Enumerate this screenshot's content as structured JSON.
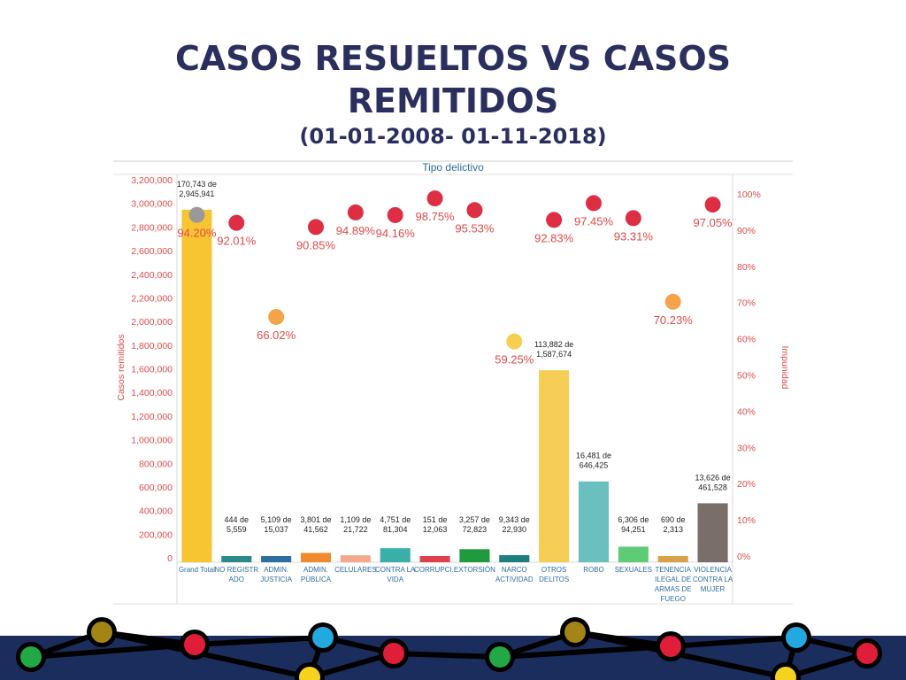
{
  "page": {
    "title_line1": "CASOS RESUELTOS VS CASOS",
    "title_line2": "REMITIDOS",
    "subtitle": "(01-01-2008- 01-11-2018)"
  },
  "colors": {
    "title": "#2b2f5e",
    "axis_left": "#e04a4a",
    "axis_right": "#e04a4a",
    "footer_band": "#1b2d5c"
  },
  "chart_data": {
    "type": "bar",
    "title": "Tipo delictivo",
    "ylabel": "Casos remitidos",
    "y2label": "Impunidad",
    "ylim": [
      0,
      3200000
    ],
    "y2lim": [
      0,
      100
    ],
    "yticks": [
      "0",
      "200,000",
      "400,000",
      "600,000",
      "800,000",
      "1,000,000",
      "1,200,000",
      "1,400,000",
      "1,600,000",
      "1,800,000",
      "2,000,000",
      "2,200,000",
      "2,400,000",
      "2,600,000",
      "2,800,000",
      "3,000,000",
      "3,200,000"
    ],
    "y2ticks": [
      "0%",
      "10%",
      "20%",
      "30%",
      "40%",
      "50%",
      "60%",
      "70%",
      "80%",
      "90%",
      "100%"
    ],
    "categories": [
      [
        "Grand Total"
      ],
      [
        "NO REGISTR",
        "ADO"
      ],
      [
        "ADMIN.",
        "JUSTICIA"
      ],
      [
        "ADMIN.",
        "PÚBLICA"
      ],
      [
        "CELULARES"
      ],
      [
        "CONTRA LA",
        "VIDA"
      ],
      [
        "CORRUPCI.."
      ],
      [
        "EXTORSIÓN"
      ],
      [
        "NARCO",
        "ACTIVIDAD"
      ],
      [
        "OTROS",
        "DELITOS"
      ],
      [
        "ROBO"
      ],
      [
        "SEXUALES"
      ],
      [
        "TENENCIA",
        "ILEGAL DE",
        "ARMAS DE",
        "FUEGO"
      ],
      [
        "VIOLENCIA",
        "CONTRA LA",
        "MUJER"
      ]
    ],
    "series": [
      {
        "name": "Casos remitidos",
        "values": [
          2945941,
          5559,
          15037,
          41562,
          21722,
          81304,
          12063,
          72823,
          22930,
          1587674,
          646425,
          94251,
          2313,
          461528
        ],
        "bar_colors": [
          "#f7c531",
          "#2a8a8a",
          "#2c6fa0",
          "#f08a2e",
          "#f4a98a",
          "#38b0a8",
          "#e0404a",
          "#1f9a3e",
          "#1f7f7f",
          "#f7ce55",
          "#6abfbf",
          "#5ecb75",
          "#d9a24a",
          "#7a6e6a"
        ]
      },
      {
        "name": "Casos resueltos",
        "values": [
          170743,
          444,
          5109,
          3801,
          1109,
          4751,
          151,
          3257,
          9343,
          113882,
          16481,
          6306,
          690,
          13626
        ]
      },
      {
        "name": "Impunidad",
        "values": [
          94.2,
          92.01,
          66.02,
          90.85,
          94.89,
          94.16,
          98.75,
          95.53,
          59.25,
          92.83,
          97.45,
          93.31,
          70.23,
          97.05
        ],
        "dot_colors": [
          "#999999",
          "#dd2e44",
          "#f5a34a",
          "#dd2e44",
          "#dd2e44",
          "#dd2e44",
          "#dd2e44",
          "#dd2e44",
          "#f7cf50",
          "#dd2e44",
          "#dd2e44",
          "#dd2e44",
          "#f5a34a",
          "#dd2e44"
        ]
      }
    ],
    "bar_labels": [
      [
        "170,743 de",
        "2,945,941"
      ],
      [
        "444 de",
        "5,559"
      ],
      [
        "5,109 de",
        "15,037"
      ],
      [
        "3,801 de",
        "41,562"
      ],
      [
        "1,109 de",
        "21,722"
      ],
      [
        "4,751 de",
        "81,304"
      ],
      [
        "151 de",
        "12,063"
      ],
      [
        "3,257 de",
        "72,823"
      ],
      [
        "9,343 de",
        "22,930"
      ],
      [
        "113,882 de",
        "1,587,674"
      ],
      [
        "16,481 de",
        "646,425"
      ],
      [
        "6,306 de",
        "94,251"
      ],
      [
        "690 de",
        "2,313"
      ],
      [
        "13,626 de",
        "461,528"
      ]
    ],
    "pct_labels": [
      "94.20%",
      "92.01%",
      "66.02%",
      "90.85%",
      "94.89%",
      "94.16%",
      "98.75%",
      "95.53%",
      "59.25%",
      "92.83%",
      "97.45%",
      "93.31%",
      "70.23%",
      "97.05%"
    ]
  },
  "footer": {
    "nodes": [
      {
        "color": "#22a845"
      },
      {
        "color": "#a38416"
      },
      {
        "color": "#e01e3a"
      },
      {
        "color": "#22a9e0"
      },
      {
        "color": "#e01e3a"
      },
      {
        "color": "#f5d21e"
      },
      {
        "color": "#22a845"
      },
      {
        "color": "#a38416"
      },
      {
        "color": "#e01e3a"
      },
      {
        "color": "#22a9e0"
      },
      {
        "color": "#e01e3a"
      },
      {
        "color": "#f5d21e"
      }
    ]
  }
}
